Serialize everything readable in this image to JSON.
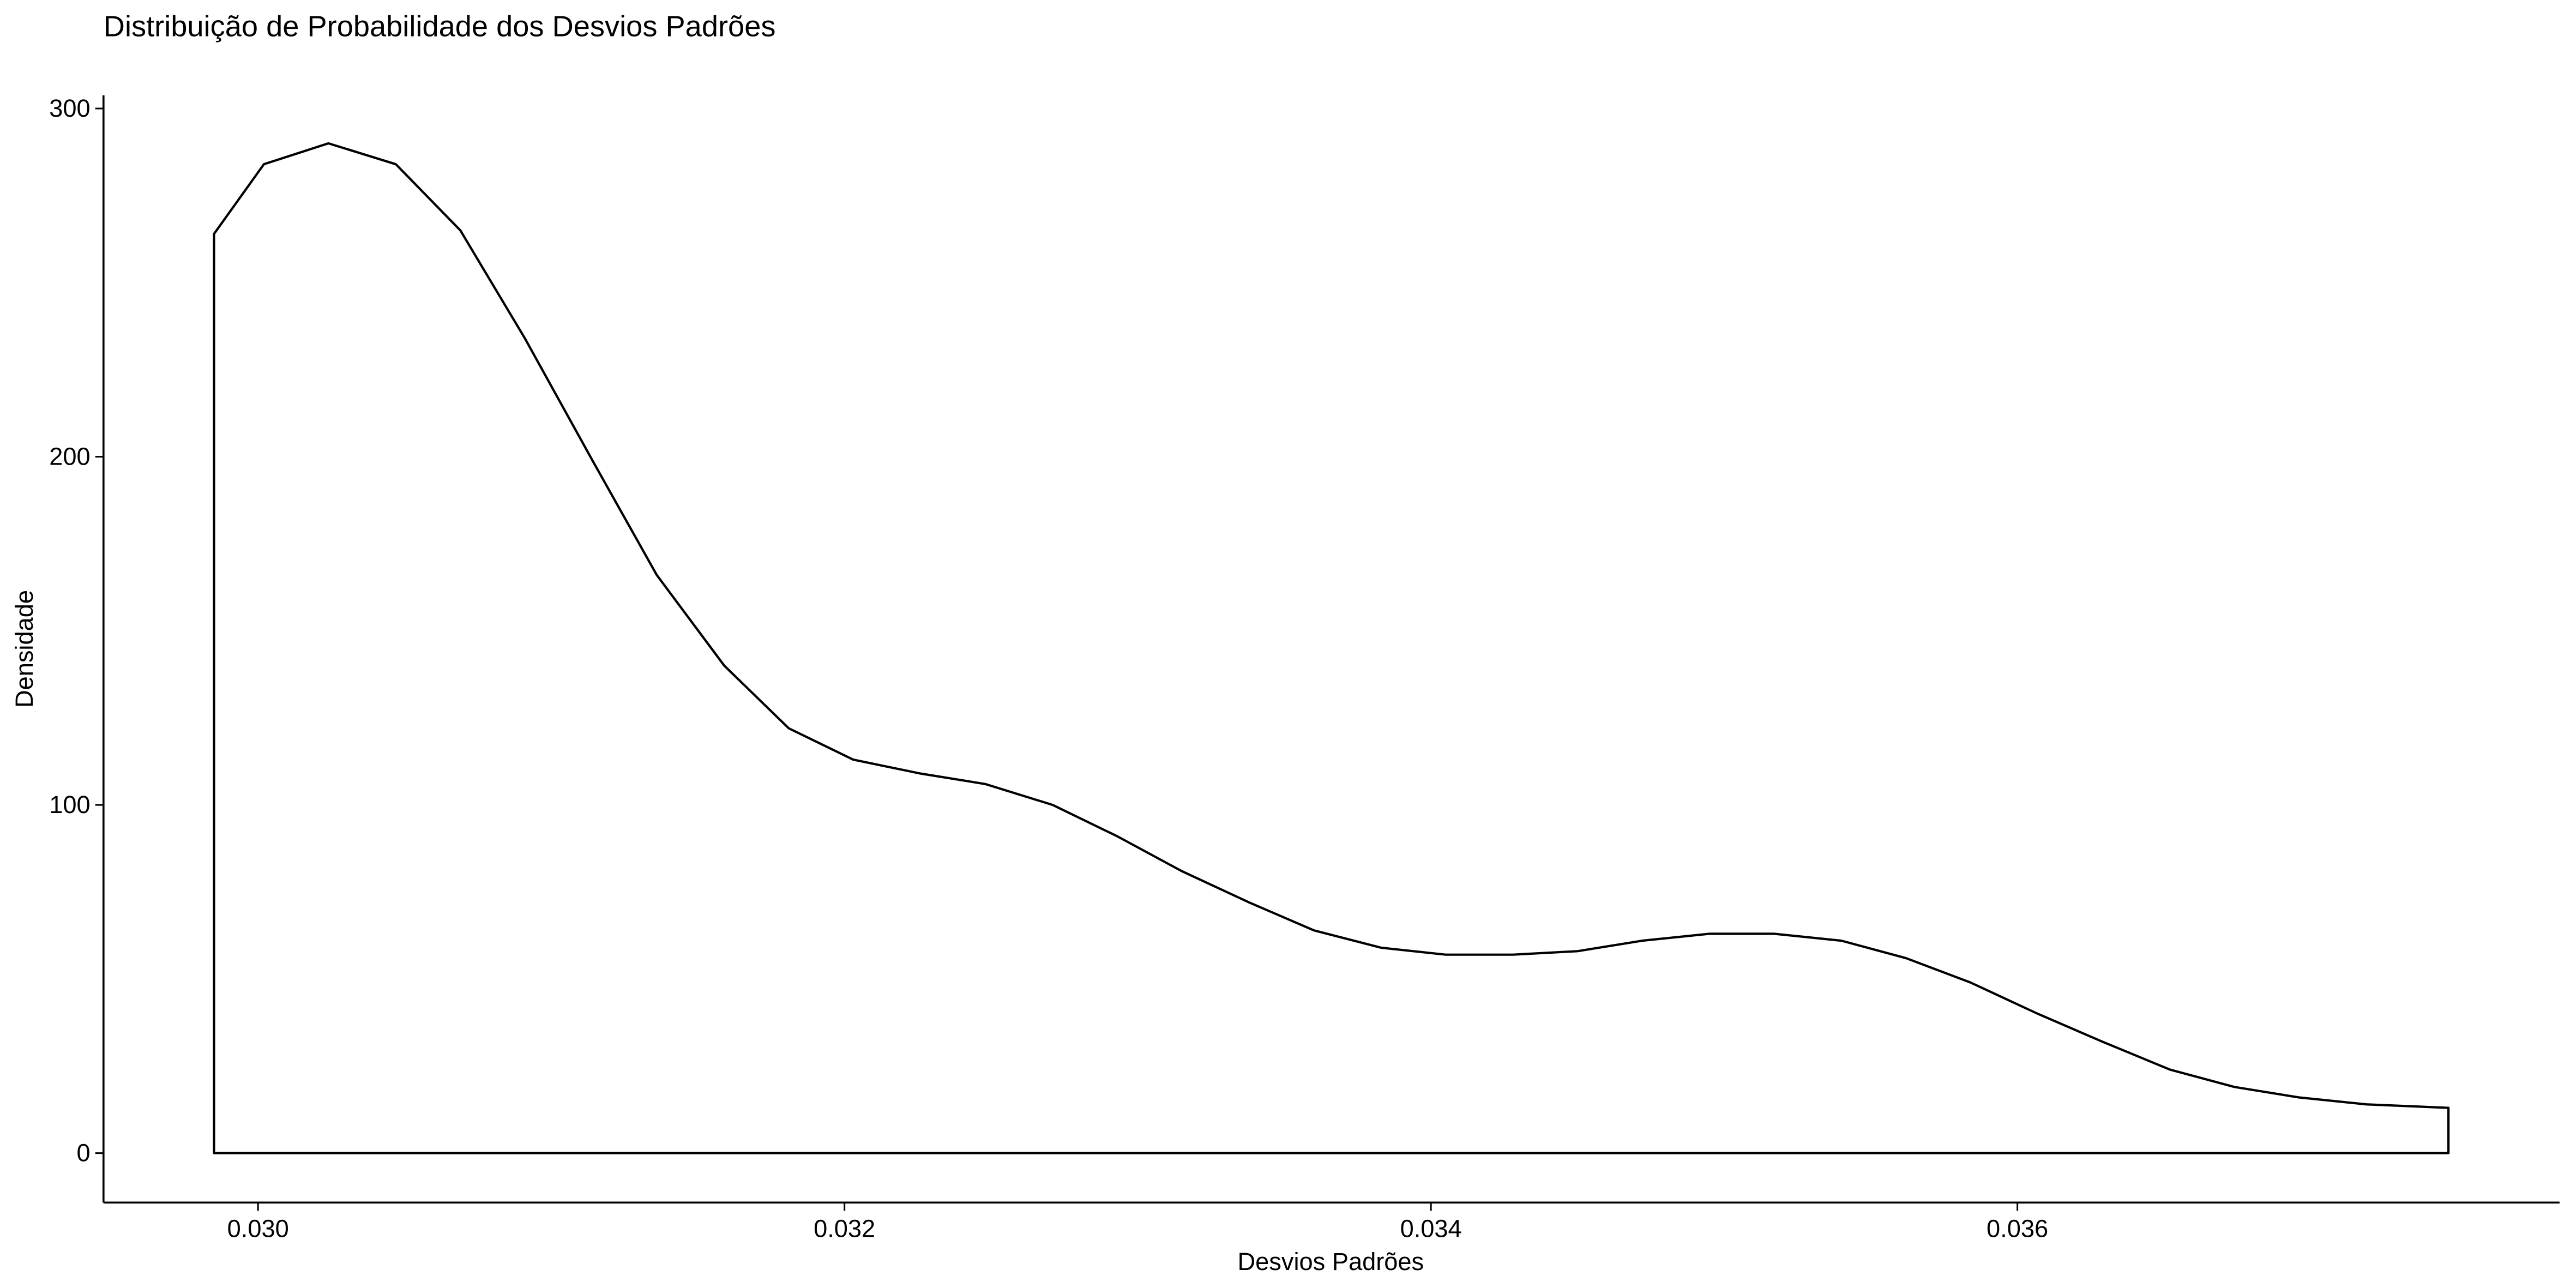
{
  "chart_data": {
    "type": "density",
    "title": "Distribuição de Probabilidade dos Desvios Padrões",
    "x_label": "Desvios Padrões",
    "y_label": "Densidade",
    "x": [
      0.02985,
      0.03002,
      0.03024,
      0.03047,
      0.03069,
      0.03091,
      0.03114,
      0.03136,
      0.03159,
      0.03181,
      0.03203,
      0.03226,
      0.03248,
      0.03271,
      0.03293,
      0.03315,
      0.03338,
      0.0336,
      0.03383,
      0.03405,
      0.03428,
      0.0345,
      0.03472,
      0.03495,
      0.03517,
      0.0354,
      0.03562,
      0.03584,
      0.03607,
      0.03629,
      0.03652,
      0.03674,
      0.03696,
      0.03719,
      0.03747
    ],
    "values": [
      264,
      284,
      290,
      284,
      265,
      234,
      199,
      166,
      140,
      122,
      113,
      109,
      106,
      100,
      91,
      81,
      72,
      64,
      59,
      57,
      57,
      58,
      61,
      63,
      63,
      61,
      56,
      49,
      40,
      32,
      24,
      19,
      16,
      14,
      13
    ],
    "color": "#000000",
    "xlim": [
      0.029473,
      0.037849
    ],
    "ylim": [
      -14.2,
      303.8
    ],
    "xticks": [
      {
        "value": 0.03,
        "label": "0.030"
      },
      0.032,
      0.034,
      0.036
    ],
    "yticks": [
      0,
      100,
      200,
      300
    ]
  }
}
